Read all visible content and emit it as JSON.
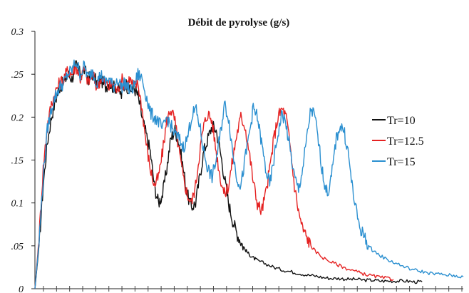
{
  "chart_data": {
    "type": "line",
    "title": "Débit de pyrolyse (g/s)",
    "xlabel": "",
    "ylabel": "",
    "ylim": [
      0,
      0.3
    ],
    "y_ticks": [
      {
        "value": 0,
        "label": "0"
      },
      {
        "value": 0.05,
        "label": ".05"
      },
      {
        "value": 0.1,
        "label": "0.1"
      },
      {
        "value": 0.15,
        "label": ".15"
      },
      {
        "value": 0.2,
        "label": "0.2"
      },
      {
        "value": 0.25,
        "label": ".25"
      },
      {
        "value": 0.3,
        "label": "0.3"
      }
    ],
    "x_tick_count": 33,
    "grid": false,
    "legend_position": "right",
    "colors": {
      "Tr=10": "#111111",
      "Tr=12.5": "#e52222",
      "Tr=15": "#2a8fd0"
    },
    "series": [
      {
        "name": "Tr=10",
        "color": "#111111",
        "points": [
          [
            0,
            0
          ],
          [
            0.5,
            0.05
          ],
          [
            1,
            0.12
          ],
          [
            1.5,
            0.17
          ],
          [
            2,
            0.2
          ],
          [
            2.5,
            0.22
          ],
          [
            3,
            0.235
          ],
          [
            3.5,
            0.24
          ],
          [
            4,
            0.25
          ],
          [
            4.5,
            0.245
          ],
          [
            5,
            0.26
          ],
          [
            5.5,
            0.25
          ],
          [
            6,
            0.255
          ],
          [
            6.5,
            0.245
          ],
          [
            7,
            0.25
          ],
          [
            7.5,
            0.24
          ],
          [
            8,
            0.245
          ],
          [
            8.5,
            0.235
          ],
          [
            9,
            0.24
          ],
          [
            9.5,
            0.235
          ],
          [
            10,
            0.235
          ],
          [
            10.5,
            0.225
          ],
          [
            11,
            0.24
          ],
          [
            11.5,
            0.23
          ],
          [
            12,
            0.235
          ],
          [
            12.5,
            0.225
          ],
          [
            13,
            0.2
          ],
          [
            13.5,
            0.18
          ],
          [
            14,
            0.16
          ],
          [
            14.5,
            0.12
          ],
          [
            15,
            0.1
          ],
          [
            15.5,
            0.11
          ],
          [
            16,
            0.14
          ],
          [
            16.5,
            0.175
          ],
          [
            17,
            0.185
          ],
          [
            17.5,
            0.17
          ],
          [
            18,
            0.14
          ],
          [
            18.5,
            0.11
          ],
          [
            19,
            0.095
          ],
          [
            19.5,
            0.1
          ],
          [
            20,
            0.13
          ],
          [
            20.5,
            0.16
          ],
          [
            21,
            0.175
          ],
          [
            21.5,
            0.19
          ],
          [
            22,
            0.185
          ],
          [
            22.5,
            0.16
          ],
          [
            23,
            0.13
          ],
          [
            23.5,
            0.1
          ],
          [
            24,
            0.08
          ],
          [
            24.5,
            0.065
          ],
          [
            25,
            0.055
          ],
          [
            25.5,
            0.046
          ],
          [
            26,
            0.04
          ],
          [
            26.5,
            0.036
          ],
          [
            27,
            0.033
          ],
          [
            28,
            0.029
          ],
          [
            29,
            0.025
          ],
          [
            30,
            0.022
          ],
          [
            31,
            0.02
          ],
          [
            32,
            0.018
          ],
          [
            33,
            0.016
          ],
          [
            34,
            0.015
          ],
          [
            35,
            0.013
          ],
          [
            36,
            0.012
          ],
          [
            37,
            0.012
          ],
          [
            38,
            0.011
          ],
          [
            39,
            0.011
          ],
          [
            40,
            0.01
          ],
          [
            41,
            0.01
          ],
          [
            42,
            0.009
          ],
          [
            43,
            0.009
          ],
          [
            44,
            0.009
          ],
          [
            45,
            0.009
          ],
          [
            46,
            0.008
          ],
          [
            47,
            0.008
          ]
        ]
      },
      {
        "name": "Tr=12.5",
        "color": "#e52222",
        "points": [
          [
            0,
            0
          ],
          [
            0.5,
            0.06
          ],
          [
            1,
            0.14
          ],
          [
            1.5,
            0.19
          ],
          [
            2,
            0.215
          ],
          [
            2.5,
            0.23
          ],
          [
            3,
            0.24
          ],
          [
            3.5,
            0.245
          ],
          [
            4,
            0.255
          ],
          [
            4.5,
            0.25
          ],
          [
            5,
            0.26
          ],
          [
            5.5,
            0.245
          ],
          [
            6,
            0.255
          ],
          [
            6.5,
            0.24
          ],
          [
            7,
            0.25
          ],
          [
            7.5,
            0.235
          ],
          [
            8,
            0.245
          ],
          [
            8.5,
            0.24
          ],
          [
            9,
            0.235
          ],
          [
            9.5,
            0.24
          ],
          [
            10,
            0.23
          ],
          [
            10.5,
            0.245
          ],
          [
            11,
            0.235
          ],
          [
            11.5,
            0.245
          ],
          [
            12,
            0.235
          ],
          [
            12.5,
            0.24
          ],
          [
            13,
            0.21
          ],
          [
            13.5,
            0.17
          ],
          [
            14,
            0.14
          ],
          [
            14.5,
            0.12
          ],
          [
            15,
            0.13
          ],
          [
            15.5,
            0.16
          ],
          [
            16,
            0.195
          ],
          [
            16.5,
            0.21
          ],
          [
            17,
            0.195
          ],
          [
            17.5,
            0.16
          ],
          [
            18,
            0.13
          ],
          [
            18.5,
            0.11
          ],
          [
            19,
            0.1
          ],
          [
            19.5,
            0.12
          ],
          [
            20,
            0.16
          ],
          [
            20.5,
            0.19
          ],
          [
            21,
            0.205
          ],
          [
            21.5,
            0.195
          ],
          [
            22,
            0.16
          ],
          [
            22.5,
            0.13
          ],
          [
            23,
            0.11
          ],
          [
            23.5,
            0.12
          ],
          [
            24,
            0.15
          ],
          [
            24.5,
            0.18
          ],
          [
            25,
            0.2
          ],
          [
            25.5,
            0.19
          ],
          [
            26,
            0.16
          ],
          [
            26.5,
            0.125
          ],
          [
            27,
            0.1
          ],
          [
            27.5,
            0.09
          ],
          [
            28,
            0.11
          ],
          [
            28.5,
            0.14
          ],
          [
            29,
            0.175
          ],
          [
            29.5,
            0.2
          ],
          [
            30,
            0.21
          ],
          [
            30.5,
            0.2
          ],
          [
            31,
            0.165
          ],
          [
            31.5,
            0.12
          ],
          [
            32,
            0.09
          ],
          [
            32.5,
            0.07
          ],
          [
            33,
            0.06
          ],
          [
            33.5,
            0.05
          ],
          [
            34,
            0.044
          ],
          [
            35,
            0.036
          ],
          [
            36,
            0.031
          ],
          [
            37,
            0.027
          ],
          [
            38,
            0.023
          ],
          [
            39,
            0.02
          ],
          [
            40,
            0.017
          ],
          [
            41,
            0.015
          ],
          [
            42,
            0.013
          ],
          [
            43,
            0.012
          ],
          [
            43.5,
            0.011
          ]
        ]
      },
      {
        "name": "Tr=15",
        "color": "#2a8fd0",
        "points": [
          [
            0,
            0
          ],
          [
            0.5,
            0.055
          ],
          [
            1,
            0.13
          ],
          [
            1.5,
            0.185
          ],
          [
            2,
            0.21
          ],
          [
            2.5,
            0.225
          ],
          [
            3,
            0.235
          ],
          [
            3.5,
            0.24
          ],
          [
            4,
            0.25
          ],
          [
            4.5,
            0.255
          ],
          [
            5,
            0.265
          ],
          [
            5.5,
            0.25
          ],
          [
            6,
            0.26
          ],
          [
            6.5,
            0.245
          ],
          [
            7,
            0.255
          ],
          [
            7.5,
            0.24
          ],
          [
            8,
            0.25
          ],
          [
            8.5,
            0.24
          ],
          [
            9,
            0.245
          ],
          [
            9.5,
            0.235
          ],
          [
            10,
            0.245
          ],
          [
            10.5,
            0.235
          ],
          [
            11,
            0.24
          ],
          [
            11.5,
            0.23
          ],
          [
            12,
            0.235
          ],
          [
            12.5,
            0.25
          ],
          [
            13,
            0.245
          ],
          [
            13.5,
            0.225
          ],
          [
            14,
            0.205
          ],
          [
            14.5,
            0.2
          ],
          [
            15,
            0.195
          ],
          [
            15.5,
            0.185
          ],
          [
            16,
            0.2
          ],
          [
            16.5,
            0.19
          ],
          [
            17,
            0.18
          ],
          [
            17.5,
            0.175
          ],
          [
            18,
            0.165
          ],
          [
            18.5,
            0.175
          ],
          [
            19,
            0.2
          ],
          [
            19.5,
            0.21
          ],
          [
            20,
            0.19
          ],
          [
            20.5,
            0.16
          ],
          [
            21,
            0.14
          ],
          [
            21.5,
            0.13
          ],
          [
            22,
            0.15
          ],
          [
            22.5,
            0.18
          ],
          [
            23,
            0.215
          ],
          [
            23.5,
            0.2
          ],
          [
            24,
            0.16
          ],
          [
            24.5,
            0.13
          ],
          [
            25,
            0.12
          ],
          [
            25.5,
            0.15
          ],
          [
            26,
            0.18
          ],
          [
            26.5,
            0.21
          ],
          [
            27,
            0.2
          ],
          [
            27.5,
            0.17
          ],
          [
            28,
            0.14
          ],
          [
            28.5,
            0.12
          ],
          [
            29,
            0.15
          ],
          [
            29.5,
            0.18
          ],
          [
            30,
            0.205
          ],
          [
            30.5,
            0.19
          ],
          [
            31,
            0.16
          ],
          [
            31.5,
            0.13
          ],
          [
            32,
            0.115
          ],
          [
            32.5,
            0.14
          ],
          [
            33,
            0.175
          ],
          [
            33.5,
            0.21
          ],
          [
            34,
            0.2
          ],
          [
            34.5,
            0.165
          ],
          [
            35,
            0.13
          ],
          [
            35.5,
            0.11
          ],
          [
            36,
            0.13
          ],
          [
            36.5,
            0.17
          ],
          [
            37,
            0.19
          ],
          [
            37.5,
            0.185
          ],
          [
            38,
            0.16
          ],
          [
            38.5,
            0.12
          ],
          [
            39,
            0.09
          ],
          [
            39.5,
            0.07
          ],
          [
            40,
            0.06
          ],
          [
            40.5,
            0.05
          ],
          [
            41,
            0.045
          ],
          [
            42,
            0.038
          ],
          [
            43,
            0.033
          ],
          [
            44,
            0.029
          ],
          [
            45,
            0.025
          ],
          [
            46,
            0.022
          ],
          [
            47,
            0.02
          ],
          [
            48,
            0.018
          ],
          [
            49,
            0.017
          ],
          [
            50,
            0.016
          ],
          [
            51,
            0.015
          ],
          [
            52,
            0.014
          ]
        ]
      }
    ]
  }
}
